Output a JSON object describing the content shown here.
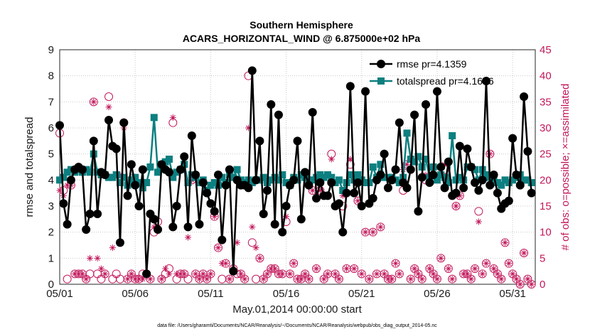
{
  "chart_data": {
    "type": "line",
    "title": [
      "Southern Hemisphere",
      "ACARS_HORIZONTAL_WIND @ 6.875000e+02 hPa"
    ],
    "xlabel": "May.01,2014 00:00:00 start",
    "ylabel": "rmse and totalspread",
    "ylabel_right": "# of obs: o=possible; ×=assimilated",
    "footer": "data file: /Users/gharamti/Documents/NCAR/Reanalysis/~/Documents/NCAR/Reanalysis/webpub/obs_diag_output_2014-05.nc",
    "xlim": [
      0,
      31.5
    ],
    "ylim": [
      0,
      9
    ],
    "ylim_right": [
      0,
      45
    ],
    "xticks": [
      0,
      5,
      10,
      15,
      20,
      25,
      30
    ],
    "xtick_labels": [
      "05/01",
      "05/06",
      "05/11",
      "05/16",
      "05/21",
      "05/26",
      "05/31"
    ],
    "yticks": [
      "0",
      "1",
      "2",
      "3",
      "4",
      "5",
      "6",
      "7",
      "8",
      "9"
    ],
    "yticks_right": [
      "0",
      "5",
      "10",
      "15",
      "20",
      "25",
      "30",
      "35",
      "40",
      "45"
    ],
    "grid": true,
    "legend_position": "top-right",
    "colors": {
      "rmse": "#000000",
      "spread": "#0d7f80",
      "obs": "#c2185b",
      "grid": "#c8c8c8"
    },
    "x": [
      0.0,
      0.25,
      0.5,
      0.75,
      1.0,
      1.25,
      1.5,
      1.75,
      2.0,
      2.25,
      2.5,
      2.75,
      3.0,
      3.25,
      3.5,
      3.75,
      4.0,
      4.25,
      4.5,
      4.75,
      5.0,
      5.25,
      5.5,
      5.75,
      6.0,
      6.25,
      6.5,
      6.75,
      7.0,
      7.25,
      7.5,
      7.75,
      8.0,
      8.25,
      8.5,
      8.75,
      9.0,
      9.25,
      9.5,
      9.75,
      10.0,
      10.25,
      10.5,
      10.75,
      11.0,
      11.25,
      11.5,
      11.75,
      12.0,
      12.25,
      12.5,
      12.75,
      13.0,
      13.25,
      13.5,
      13.75,
      14.0,
      14.25,
      14.5,
      14.75,
      15.0,
      15.25,
      15.5,
      15.75,
      16.0,
      16.25,
      16.5,
      16.75,
      17.0,
      17.25,
      17.5,
      17.75,
      18.0,
      18.25,
      18.5,
      18.75,
      19.0,
      19.25,
      19.5,
      19.75,
      20.0,
      20.25,
      20.5,
      20.75,
      21.0,
      21.25,
      21.5,
      21.75,
      22.0,
      22.25,
      22.5,
      22.75,
      23.0,
      23.25,
      23.5,
      23.75,
      24.0,
      24.25,
      24.5,
      24.75,
      25.0,
      25.25,
      25.5,
      25.75,
      26.0,
      26.25,
      26.5,
      26.75,
      27.0,
      27.25,
      27.5,
      27.75,
      28.0,
      28.25,
      28.5,
      28.75,
      29.0,
      29.25,
      29.5,
      29.75,
      30.0,
      30.25,
      30.5,
      30.75,
      31.0,
      31.25
    ],
    "series": [
      {
        "name": "rmse pr=4.1359",
        "values": [
          6.1,
          3.1,
          2.3,
          4.0,
          4.4,
          4.5,
          4.4,
          2.1,
          2.7,
          5.5,
          2.7,
          4.3,
          4.2,
          6.3,
          5.3,
          5.2,
          1.6,
          6.2,
          3.4,
          4.6,
          3.8,
          3.0,
          4.4,
          0.4,
          2.7,
          2.5,
          2.1,
          4.6,
          4.4,
          4.3,
          2.2,
          3.0,
          4.4,
          4.9,
          2.2,
          5.7,
          4.2,
          2.3,
          3.9,
          3.5,
          3.1,
          2.8,
          4.2,
          1.7,
          3.8,
          4.4,
          0.5,
          4.0,
          3.8,
          3.8,
          3.7,
          8.2,
          4.0,
          5.5,
          2.7,
          3.6,
          6.9,
          2.3,
          6.5,
          2.0,
          3.0,
          3.8,
          4.0,
          5.5,
          2.5,
          4.3,
          3.8,
          6.6,
          3.3,
          3.9,
          3.4,
          3.4,
          3.9,
          3.0,
          3.1,
          2.0,
          3.5,
          7.6,
          3.5,
          3.9,
          3.0,
          7.4,
          3.1,
          3.3,
          4.0,
          4.2,
          5.0,
          3.7,
          4.0,
          4.4,
          6.2,
          3.9,
          3.7,
          4.4,
          6.5,
          2.8,
          4.1,
          6.9,
          3.9,
          4.2,
          7.4,
          4.5,
          3.7,
          4.7,
          3.4,
          3.5,
          5.3,
          3.7,
          5.2,
          4.5,
          3.9,
          3.6,
          4.0,
          7.8,
          3.8,
          4.2,
          3.5,
          2.9,
          3.1,
          3.2,
          5.6,
          4.2,
          3.8,
          7.2,
          5.1,
          3.5
        ],
        "marker": "circle"
      },
      {
        "name": "totalspread pr=4.1676",
        "values": [
          4.0,
          4.1,
          4.3,
          4.4,
          4.3,
          4.4,
          4.3,
          4.4,
          4.3,
          5.0,
          4.3,
          4.2,
          4.2,
          4.1,
          4.1,
          4.2,
          3.9,
          4.1,
          3.8,
          4.0,
          4.1,
          3.9,
          3.7,
          3.9,
          4.5,
          6.4,
          4.3,
          4.6,
          4.7,
          4.8,
          4.1,
          4.3,
          4.4,
          4.6,
          3.9,
          4.2,
          4.1,
          3.9,
          4.0,
          3.6,
          3.8,
          3.9,
          3.8,
          4.1,
          3.9,
          4.2,
          4.1,
          4.4,
          4.0,
          3.9,
          4.0,
          3.9,
          4.0,
          4.0,
          4.1,
          3.9,
          4.0,
          4.1,
          4.0,
          4.2,
          3.9,
          3.8,
          4.1,
          4.0,
          4.2,
          4.1,
          4.0,
          4.0,
          4.1,
          4.2,
          4.1,
          4.2,
          4.1,
          3.9,
          4.0,
          3.6,
          3.9,
          4.2,
          4.0,
          4.2,
          4.0,
          3.9,
          3.9,
          4.5,
          4.1,
          4.6,
          4.1,
          4.1,
          4.1,
          4.0,
          3.9,
          4.1,
          5.8,
          4.8,
          4.7,
          4.9,
          4.5,
          4.8,
          4.1,
          4.5,
          4.0,
          4.2,
          4.1,
          3.9,
          5.7,
          4.0,
          4.1,
          4.0,
          4.5,
          4.5,
          4.4,
          4.0,
          4.4,
          4.2,
          4.1,
          4.0,
          3.9,
          3.8,
          4.0,
          3.9,
          4.0,
          4.1,
          4.2,
          4.0,
          4.0,
          3.9
        ],
        "marker": "square"
      },
      {
        "name": "possible",
        "axis": "right",
        "marker": "open-circle",
        "values": [
          29,
          18,
          1,
          19,
          2,
          2,
          2,
          1,
          2,
          35,
          2,
          1,
          2,
          36,
          1,
          2,
          1,
          31,
          1,
          2,
          1,
          1,
          2,
          2,
          1,
          10,
          12,
          1,
          2,
          3,
          31,
          1,
          2,
          2,
          1,
          20,
          2,
          1,
          2,
          1,
          2,
          13,
          7,
          1,
          4,
          1,
          3,
          2,
          2,
          1,
          40,
          8,
          1,
          5,
          1,
          2,
          3,
          3,
          2,
          2,
          12,
          2,
          4,
          1,
          1,
          2,
          1,
          18,
          3,
          18,
          1,
          2,
          25,
          2,
          1,
          15,
          3,
          23,
          3,
          16,
          2,
          10,
          1,
          10,
          2,
          11,
          2,
          1,
          1,
          4,
          2,
          18,
          23,
          1,
          3,
          2,
          1,
          20,
          3,
          2,
          1,
          5,
          22,
          3,
          1,
          15,
          17,
          2,
          2,
          1,
          3,
          14,
          2,
          4,
          25,
          3,
          2,
          1,
          8,
          4,
          2,
          1,
          0,
          6,
          1,
          0
        ]
      },
      {
        "name": "assimilated",
        "axis": "right",
        "marker": "star",
        "values": [
          18,
          17,
          19,
          19,
          2,
          2,
          2,
          1,
          5,
          35,
          5,
          3,
          2,
          34,
          7,
          26,
          21,
          30,
          1,
          2,
          1,
          1,
          1,
          2,
          1,
          11,
          11,
          1,
          3,
          2,
          32,
          2,
          2,
          2,
          9,
          20,
          2,
          1,
          2,
          1,
          2,
          13,
          7,
          4,
          4,
          1,
          3,
          8,
          2,
          1,
          30,
          11,
          7,
          5,
          1,
          2,
          3,
          3,
          2,
          2,
          13,
          2,
          4,
          1,
          1,
          2,
          1,
          18,
          3,
          18,
          1,
          2,
          24,
          2,
          1,
          17,
          3,
          24,
          3,
          16,
          2,
          10,
          1,
          10,
          2,
          11,
          2,
          1,
          1,
          4,
          2,
          22,
          23,
          1,
          3,
          2,
          1,
          21,
          3,
          2,
          1,
          5,
          23,
          3,
          1,
          15,
          17,
          2,
          2,
          1,
          3,
          12,
          2,
          4,
          25,
          3,
          2,
          1,
          8,
          4,
          2,
          1,
          0,
          6,
          1,
          0
        ]
      }
    ]
  },
  "legend": {
    "rmse_label": "rmse pr=4.1359",
    "spread_label": "totalspread pr=4.1676"
  }
}
